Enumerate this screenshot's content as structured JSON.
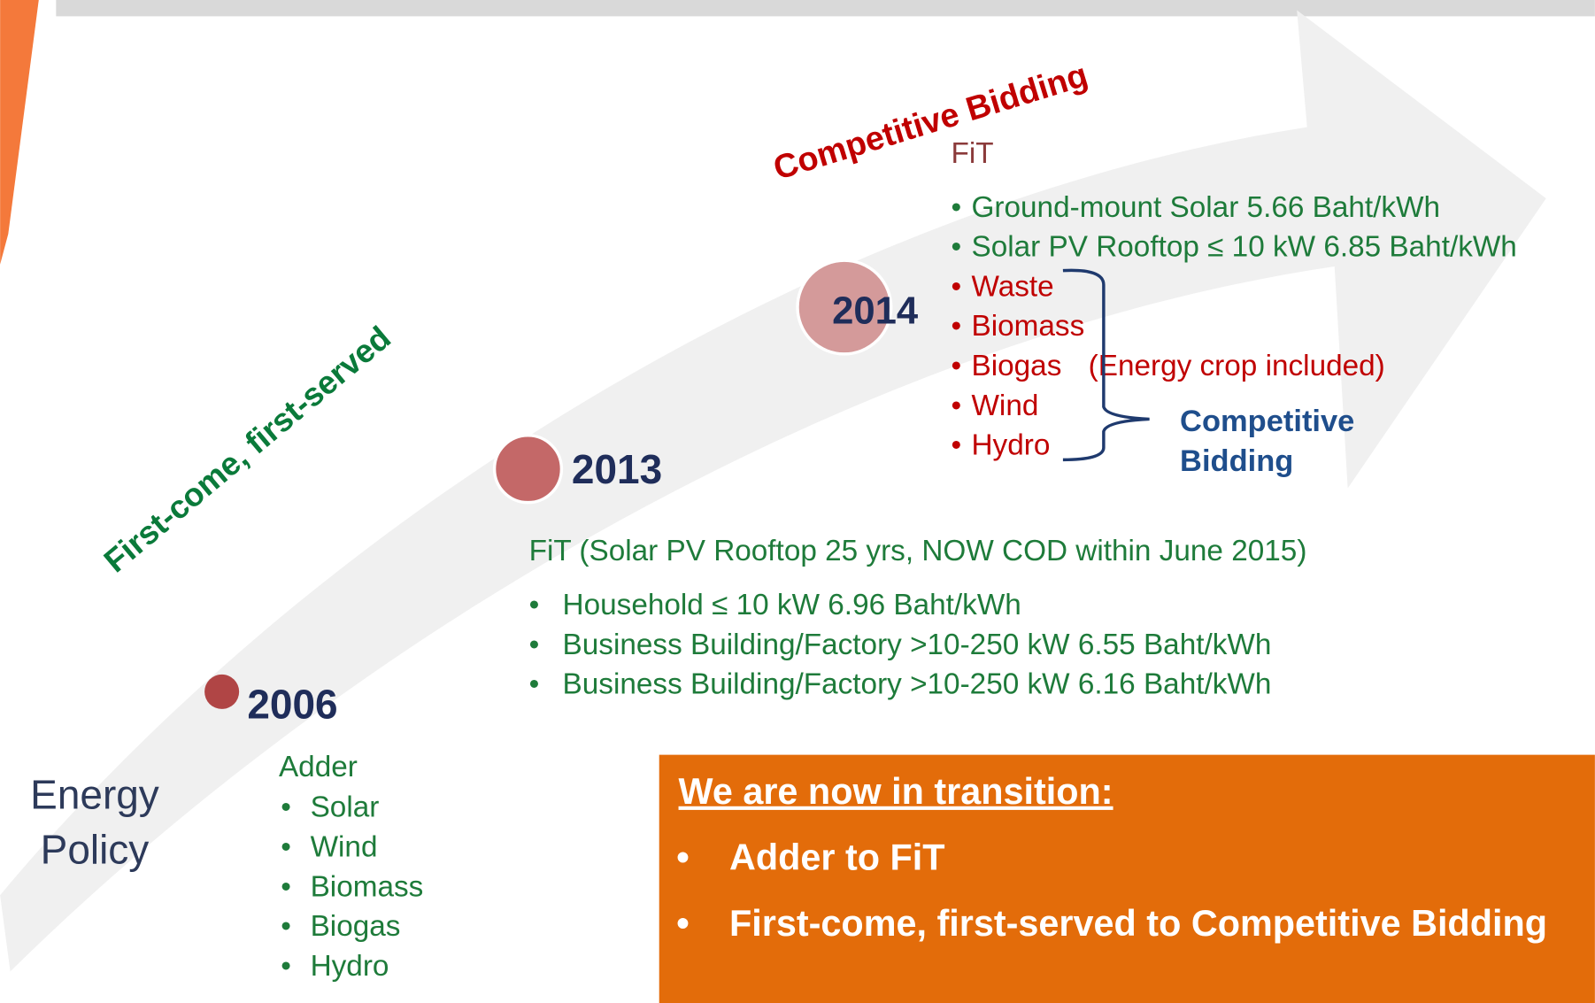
{
  "policy_label": "Energy Policy",
  "phases": {
    "first_come": "First-come, first-served",
    "competitive": "Competitive Bidding"
  },
  "milestones": [
    {
      "year": "2006",
      "heading": "Adder",
      "items": [
        "Solar",
        "Wind",
        "Biomass",
        "Biogas",
        "Hydro"
      ]
    },
    {
      "year": "2013",
      "heading": "FiT (Solar PV Rooftop 25 yrs, NOW COD within June 2015)",
      "items": [
        "Household ≤ 10 kW  6.96 Baht/kWh",
        "Business Building/Factory >10-250 kW 6.55 Baht/kWh",
        "Business Building/Factory >10-250 kW 6.16 Baht/kWh"
      ]
    },
    {
      "year": "2014",
      "heading": "FiT",
      "items": [
        "Ground-mount Solar  5.66 Baht/kWh",
        "Solar PV Rooftop ≤ 10 kW 6.85 Baht/kWh"
      ],
      "bidding_items": [
        "Waste",
        "Biomass",
        "Biogas",
        "Wind",
        "Hydro"
      ],
      "note": "(Energy crop included)",
      "bracket_label": "Competitive Bidding"
    }
  ],
  "transition": {
    "title": "We are now in transition:",
    "items": [
      "Adder to FiT",
      "First-come, first-served to Competitive Bidding"
    ]
  }
}
